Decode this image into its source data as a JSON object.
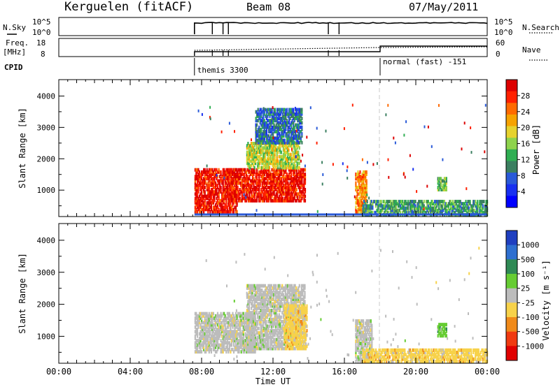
{
  "header": {
    "site": "Kerguelen (fitACF)",
    "beam": "Beam 08",
    "date": "07/May/2011"
  },
  "noise_panel": {
    "left_label": "N.Sky",
    "right_label": "N.Search",
    "left_ticks": [
      "10^5",
      "10^0"
    ],
    "right_ticks": [
      "10^5",
      "10^0"
    ]
  },
  "freq_panel": {
    "left_label_top": "Freq.",
    "left_label_bottom": "[MHz]",
    "left_ticks": [
      "18",
      "8"
    ],
    "right_label": "Nave",
    "right_ticks": [
      "60",
      "0"
    ]
  },
  "cpid": {
    "label": "CPID",
    "programs": [
      {
        "name": "themis 3300",
        "start_hour": 7.6
      },
      {
        "name": "normal (fast) -151",
        "start_hour": 18.0
      }
    ]
  },
  "chart_data": [
    {
      "type": "heatmap",
      "parameter": "power",
      "ylabel": "Slant Range [km]",
      "ylim": [
        180,
        4500
      ],
      "yticks": [
        1000,
        2000,
        3000,
        4000
      ],
      "xlim": [
        0,
        24
      ],
      "colorbar": {
        "label": "Power [dB]",
        "ticks": [
          "28",
          "24",
          "20",
          "16",
          "12",
          "8",
          "4"
        ],
        "colors": [
          "#dd0000",
          "#ff2000",
          "#ff6a00",
          "#f6a200",
          "#e6d22e",
          "#8ed34c",
          "#2fae52",
          "#3b7f60",
          "#2a5ad8",
          "#1830f0",
          "#0000ff"
        ]
      },
      "regions": [
        {
          "t0": 7.6,
          "t1": 10.0,
          "r0": 300,
          "r1": 1700,
          "level": 28
        },
        {
          "t0": 9.5,
          "t1": 13.8,
          "r0": 650,
          "r1": 1700,
          "level": 26
        },
        {
          "t0": 10.5,
          "t1": 13.5,
          "r0": 1700,
          "r1": 2500,
          "level": 14
        },
        {
          "t0": 11.0,
          "t1": 13.6,
          "r0": 2500,
          "r1": 3600,
          "level": 5
        },
        {
          "t0": 16.6,
          "t1": 17.2,
          "r0": 300,
          "r1": 1600,
          "level": 22
        },
        {
          "t0": 17.0,
          "t1": 24.0,
          "r0": 200,
          "r1": 650,
          "level": 8
        },
        {
          "t0": 21.2,
          "t1": 21.7,
          "r0": 1000,
          "r1": 1400,
          "level": 12
        }
      ]
    },
    {
      "type": "heatmap",
      "parameter": "velocity",
      "ylabel": "Slant Range [km]",
      "ylim": [
        180,
        4500
      ],
      "yticks": [
        1000,
        2000,
        3000,
        4000
      ],
      "xlim": [
        0,
        24
      ],
      "xticks": [
        "00:00",
        "04:00",
        "08:00",
        "12:00",
        "16:00",
        "20:00",
        "00:00"
      ],
      "xlabel": "Time UT",
      "colorbar": {
        "label": "Velocity [m s⁻¹]",
        "ticks": [
          "1000",
          "500",
          "100",
          "25",
          "-25",
          "-100",
          "-500",
          "-1000"
        ],
        "colors": [
          "#1f3fc0",
          "#2e6fd0",
          "#2f8a55",
          "#66cc33",
          "#bcbcbc",
          "#f7d24a",
          "#f08a1a",
          "#f03a10",
          "#e00000"
        ]
      },
      "regions": [
        {
          "t0": 7.6,
          "t1": 11.0,
          "r0": 500,
          "r1": 1700,
          "level": 0
        },
        {
          "t0": 10.5,
          "t1": 13.8,
          "r0": 600,
          "r1": 2600,
          "level": 0
        },
        {
          "t0": 12.6,
          "t1": 13.9,
          "r0": 600,
          "r1": 2000,
          "level": -100
        },
        {
          "t0": 16.6,
          "t1": 17.5,
          "r0": 200,
          "r1": 1500,
          "level": 0
        },
        {
          "t0": 17.0,
          "t1": 24.0,
          "r0": 200,
          "r1": 600,
          "level": -100
        },
        {
          "t0": 21.2,
          "t1": 21.7,
          "r0": 1000,
          "r1": 1400,
          "level": 100
        }
      ]
    }
  ]
}
